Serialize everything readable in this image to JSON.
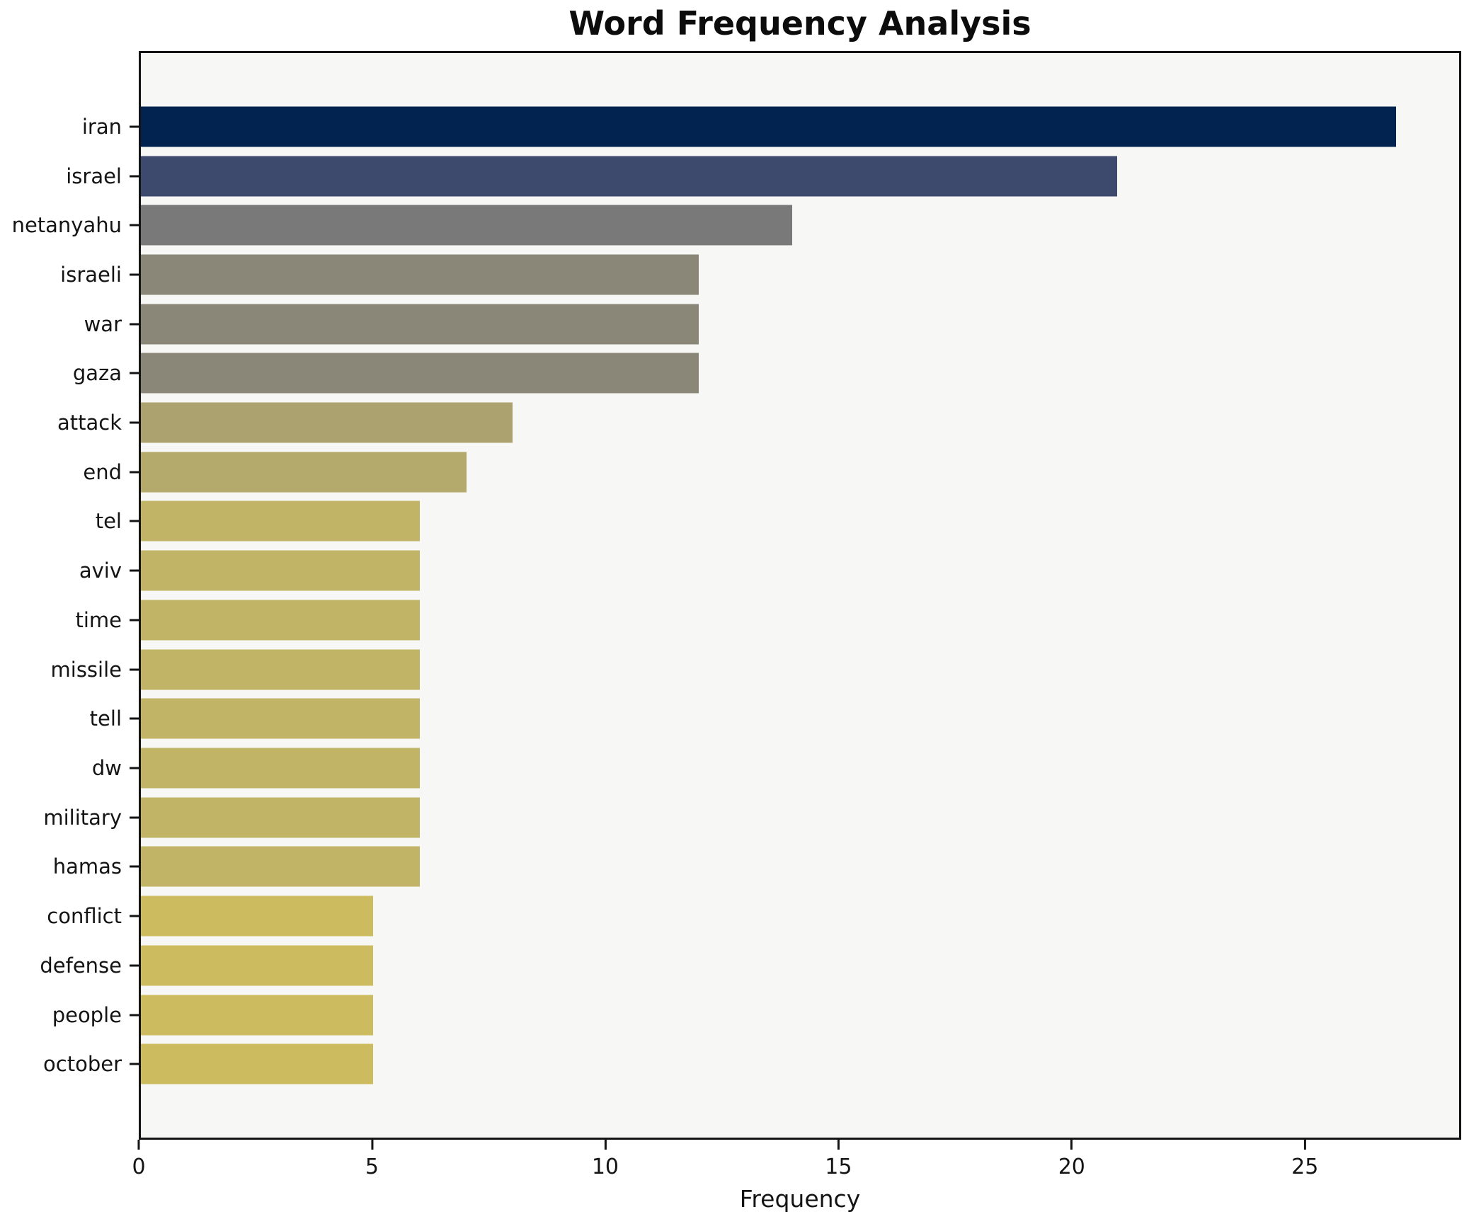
{
  "chart_data": {
    "type": "bar",
    "orientation": "horizontal",
    "title": "Word Frequency Analysis",
    "xlabel": "Frequency",
    "ylabel": "",
    "categories": [
      "iran",
      "israel",
      "netanyahu",
      "israeli",
      "war",
      "gaza",
      "attack",
      "end",
      "tel",
      "aviv",
      "time",
      "missile",
      "tell",
      "dw",
      "military",
      "hamas",
      "conflict",
      "defense",
      "people",
      "october"
    ],
    "values": [
      27,
      21,
      14,
      12,
      12,
      12,
      8,
      7,
      6,
      6,
      6,
      6,
      6,
      6,
      6,
      6,
      5,
      5,
      5,
      5
    ],
    "bar_colors": [
      "#02234f",
      "#3d4a6e",
      "#797979",
      "#8b8778",
      "#8b8778",
      "#8b8778",
      "#aba26f",
      "#b4aa6c",
      "#c2b467",
      "#c2b467",
      "#c2b467",
      "#c2b467",
      "#c2b467",
      "#c2b467",
      "#c2b467",
      "#c2b467",
      "#ccbc5f",
      "#ccbc5f",
      "#ccbc5f",
      "#ccbc5f"
    ],
    "xlim": [
      0,
      28.35
    ],
    "xticks": [
      "0",
      "5",
      "10",
      "15",
      "20",
      "25"
    ],
    "grid": false,
    "legend": false,
    "plot_background": "#f7f7f5",
    "figure_background": "#ffffff",
    "spine_color": "#141414",
    "text_color": "#141414"
  }
}
